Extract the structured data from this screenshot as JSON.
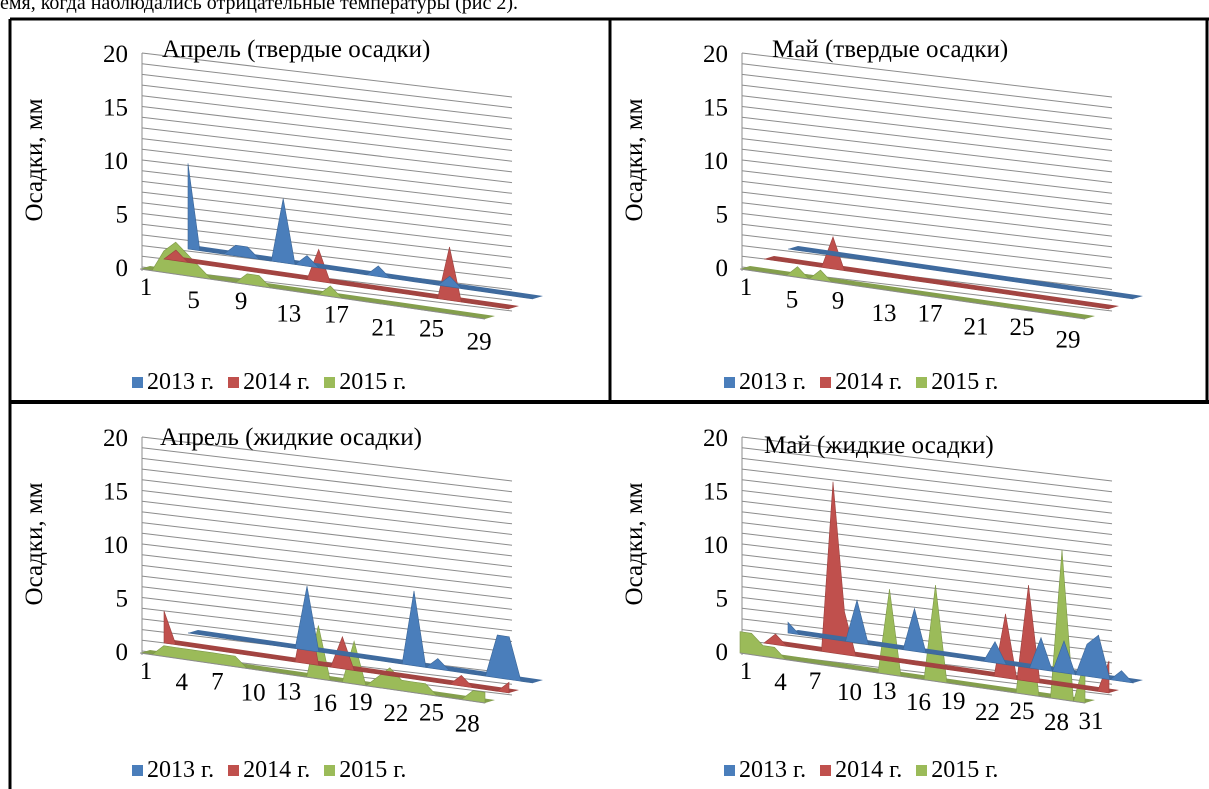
{
  "intro_text": "емя, когда наблюдались отрицательные температуры (рис 2).",
  "colors": {
    "2013": "#4a7ebb",
    "2014": "#c0504d",
    "2015": "#9bbb59"
  },
  "chart_data": [
    {
      "type": "area",
      "title": "Апрель (твердые осадки)",
      "ylabel": "Осадки, мм",
      "ylim": [
        0,
        20
      ],
      "yticks": [
        "0",
        "5",
        "10",
        "15",
        "20"
      ],
      "x": [
        1,
        2,
        3,
        4,
        5,
        6,
        7,
        8,
        9,
        10,
        11,
        12,
        13,
        14,
        15,
        16,
        17,
        18,
        19,
        20,
        21,
        22,
        23,
        24,
        25,
        26,
        27,
        28,
        29,
        30
      ],
      "xtick_labels": [
        "1",
        "5",
        "9",
        "13",
        "17",
        "21",
        "25",
        "29"
      ],
      "series": [
        {
          "name": "2013 г.",
          "values": [
            8,
            0,
            0,
            0,
            1,
            1,
            0,
            0,
            6,
            0,
            1,
            0,
            0,
            0,
            0,
            0,
            1,
            0,
            0,
            0,
            0,
            0,
            1,
            0,
            0,
            0,
            0,
            0,
            0,
            0
          ]
        },
        {
          "name": "2014 г.",
          "values": [
            0,
            1,
            0,
            0,
            0,
            0,
            0,
            0,
            0,
            0,
            0,
            0,
            0,
            3,
            0,
            0,
            0,
            0,
            0,
            0,
            0,
            0,
            0,
            0,
            5,
            0,
            0,
            0,
            0,
            0
          ]
        },
        {
          "name": "2015 г.",
          "values": [
            0,
            0,
            2,
            3,
            2,
            1,
            0,
            0,
            0,
            1,
            1,
            0,
            0,
            0,
            0,
            0,
            1,
            0,
            0,
            0,
            0,
            0,
            0,
            0,
            0,
            0,
            0,
            0,
            0,
            0
          ]
        }
      ],
      "legend": "bottom"
    },
    {
      "type": "area",
      "title": "Май (твердые осадки)",
      "ylabel": "Осадки, мм",
      "ylim": [
        0,
        20
      ],
      "yticks": [
        "0",
        "5",
        "10",
        "15",
        "20"
      ],
      "x": [
        1,
        2,
        3,
        4,
        5,
        6,
        7,
        8,
        9,
        10,
        11,
        12,
        13,
        14,
        15,
        16,
        17,
        18,
        19,
        20,
        21,
        22,
        23,
        24,
        25,
        26,
        27,
        28,
        29,
        30,
        31
      ],
      "xtick_labels": [
        "1",
        "5",
        "9",
        "13",
        "17",
        "21",
        "25",
        "29"
      ],
      "series": [
        {
          "name": "2013 г.",
          "values": [
            0,
            0,
            0,
            0,
            0,
            0,
            0,
            0,
            0,
            0,
            0,
            0,
            0,
            0,
            0,
            0,
            0,
            0,
            0,
            0,
            0,
            0,
            0,
            0,
            0,
            0,
            0,
            0,
            0,
            0,
            0
          ]
        },
        {
          "name": "2014 г.",
          "values": [
            0,
            0,
            0,
            0,
            0,
            0,
            3,
            0,
            0,
            0,
            0,
            0,
            0,
            0,
            0,
            0,
            0,
            0,
            0,
            0,
            0,
            0,
            0,
            0,
            0,
            0,
            0,
            0,
            0,
            0,
            0
          ]
        },
        {
          "name": "2015 г.",
          "values": [
            0,
            0,
            0,
            0,
            0,
            1,
            0,
            1,
            0,
            0,
            0,
            0,
            0,
            0,
            0,
            0,
            0,
            0,
            0,
            0,
            0,
            0,
            0,
            0,
            0,
            0,
            0,
            0,
            0,
            0,
            0
          ]
        }
      ],
      "legend": "bottom"
    },
    {
      "type": "area",
      "title": "Апрель (жидкие осадки)",
      "ylabel": "Осадки, мм",
      "ylim": [
        0,
        20
      ],
      "yticks": [
        "0",
        "5",
        "10",
        "15",
        "20"
      ],
      "x": [
        1,
        2,
        3,
        4,
        5,
        6,
        7,
        8,
        9,
        10,
        11,
        12,
        13,
        14,
        15,
        16,
        17,
        18,
        19,
        20,
        21,
        22,
        23,
        24,
        25,
        26,
        27,
        28,
        29,
        30
      ],
      "xtick_labels": [
        "1",
        "4",
        "7",
        "10",
        "13",
        "16",
        "19",
        "22",
        "25",
        "28"
      ],
      "series": [
        {
          "name": "2013 г.",
          "values": [
            0,
            0,
            0,
            0,
            0,
            0,
            0,
            0,
            0,
            0,
            6,
            0,
            0,
            0,
            0,
            0,
            0,
            0,
            0,
            7,
            0,
            1,
            0,
            0,
            0,
            0,
            4,
            4,
            0,
            0
          ]
        },
        {
          "name": "2014 г.",
          "values": [
            3,
            0,
            0,
            0,
            0,
            0,
            0,
            0,
            0,
            0,
            0,
            0,
            6,
            0,
            0,
            3,
            0,
            0,
            0,
            0,
            0,
            0,
            0,
            0,
            0,
            1,
            0,
            0,
            0,
            1
          ]
        },
        {
          "name": "2015 г.",
          "values": [
            0,
            0,
            1,
            1,
            1,
            1,
            1,
            1,
            1,
            0,
            0,
            0,
            0,
            0,
            0,
            5,
            0,
            0,
            4,
            0,
            1,
            2,
            1,
            1,
            1,
            0,
            0,
            0,
            1,
            1
          ]
        }
      ],
      "legend": "bottom"
    },
    {
      "type": "area",
      "title": "Май (жидкие осадки)",
      "ylabel": "Осадки, мм",
      "ylim": [
        0,
        20
      ],
      "yticks": [
        "0",
        "5",
        "10",
        "15",
        "20"
      ],
      "x": [
        1,
        2,
        3,
        4,
        5,
        6,
        7,
        8,
        9,
        10,
        11,
        12,
        13,
        14,
        15,
        16,
        17,
        18,
        19,
        20,
        21,
        22,
        23,
        24,
        25,
        26,
        27,
        28,
        29,
        30,
        31
      ],
      "xtick_labels": [
        "1",
        "4",
        "7",
        "10",
        "13",
        "16",
        "19",
        "22",
        "25",
        "28",
        "31"
      ],
      "series": [
        {
          "name": "2013 г.",
          "values": [
            1,
            0,
            0,
            0,
            0,
            0,
            4,
            0,
            0,
            0,
            0,
            4,
            0,
            0,
            0,
            0,
            0,
            0,
            2,
            0,
            0,
            0,
            3,
            0,
            3,
            0,
            3,
            4,
            0,
            1,
            0
          ]
        },
        {
          "name": "2014 г.",
          "values": [
            0,
            1,
            0,
            0,
            0,
            0,
            16,
            4,
            0,
            0,
            0,
            0,
            0,
            0,
            0,
            0,
            0,
            0,
            0,
            0,
            0,
            6,
            0,
            9,
            0,
            0,
            0,
            0,
            0,
            0,
            3
          ]
        },
        {
          "name": "2015 г.",
          "values": [
            2,
            2,
            1,
            1,
            0,
            0,
            0,
            0,
            0,
            0,
            0,
            0,
            0,
            8,
            0,
            0,
            0,
            9,
            0,
            0,
            0,
            0,
            0,
            0,
            0,
            9,
            0,
            0,
            14,
            0,
            4
          ]
        }
      ],
      "legend": "bottom"
    }
  ]
}
